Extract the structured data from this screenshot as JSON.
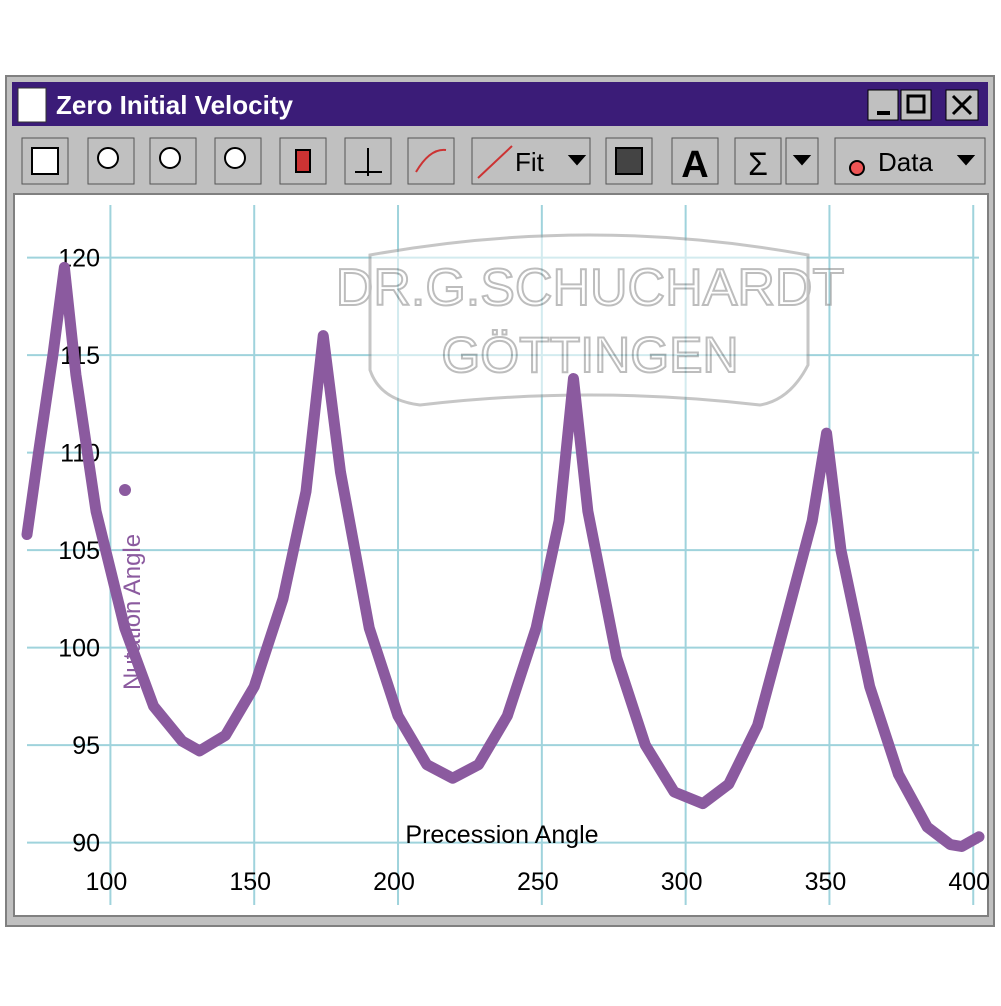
{
  "window": {
    "title": "Zero Initial Velocity"
  },
  "toolbar": {
    "buttons": [
      "Fit",
      "A",
      "Σ",
      "Data"
    ]
  },
  "watermark": [
    "DR.G.SCHUCHARDT",
    "GÖTTINGEN"
  ],
  "chart_data": {
    "type": "line",
    "x_label": "Precession Angle",
    "x": [
      71,
      75,
      80,
      84,
      88,
      95,
      105,
      115,
      125,
      131,
      140,
      150,
      160,
      168,
      174,
      180,
      190,
      200,
      210,
      219,
      228,
      238,
      248,
      256,
      261,
      266,
      276,
      286,
      296,
      306,
      315,
      325,
      335,
      344,
      349,
      354,
      364,
      374,
      384,
      392,
      396,
      402
    ],
    "series": [
      {
        "name": "Nutation Angle",
        "color": "#8b5a9f",
        "values": [
          105.8,
          110,
          115,
          119.5,
          114,
          107,
          101,
          97,
          95.2,
          94.7,
          95.5,
          98,
          102.5,
          108,
          116,
          109,
          101,
          96.5,
          94,
          93.3,
          94,
          96.5,
          101,
          106.5,
          113.8,
          107,
          99.5,
          95,
          92.6,
          92,
          93,
          96,
          101.5,
          106.5,
          111,
          105,
          98,
          93.5,
          90.8,
          89.9,
          89.8,
          90.3
        ]
      }
    ],
    "xlim": [
      71,
      402
    ],
    "ylim": [
      86.8,
      122.7
    ],
    "xticks": [
      100,
      150,
      200,
      250,
      300,
      350,
      400
    ],
    "yticks": [
      90,
      95,
      100,
      105,
      110,
      115,
      120
    ],
    "grid": true
  }
}
